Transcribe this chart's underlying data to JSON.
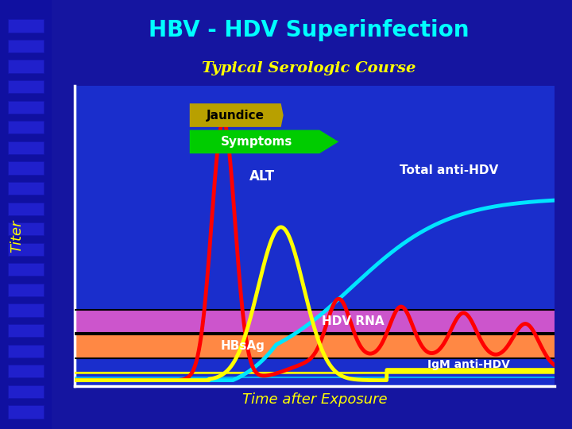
{
  "title": "HBV - HDV Superinfection",
  "subtitle": "Typical Serologic Course",
  "xlabel": "Time after Exposure",
  "ylabel": "Titer",
  "bg_color": "#1515a0",
  "plot_bg_color": "#1a2ecc",
  "title_color": "#00ffff",
  "subtitle_color": "#ffff00",
  "xlabel_color": "#ffff00",
  "ylabel_color": "#ffff00",
  "jaundice_color": "#b8a000",
  "jaundice_text_color": "#000000",
  "symptoms_color": "#00cc00",
  "symptoms_text_color": "#ffffff",
  "alt_color": "#ff0000",
  "total_anti_hdv_color": "#00e5ff",
  "hdv_rna_color": "#cc55cc",
  "hbsag_color": "#ff8844",
  "igm_anti_hdv_color": "#ffff00",
  "white_line_color": "#ffffff",
  "axis_color": "#ffffff",
  "left_strip_color": "#1a2aaa"
}
